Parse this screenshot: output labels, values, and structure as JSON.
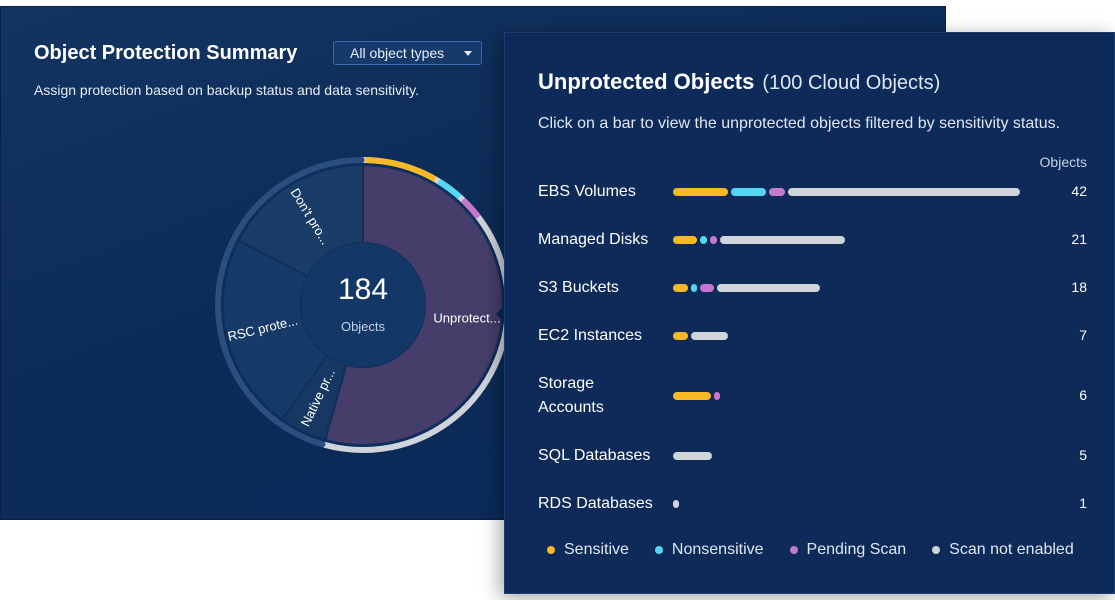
{
  "summary": {
    "title": "Object Protection Summary",
    "filter_value": "All object types",
    "subtitle": "Assign protection based on backup status and data sensitivity.",
    "center_value": "184",
    "center_label": "Objects",
    "slices": [
      {
        "label": "Unprotect...",
        "value": 100,
        "fill": "#463d6b"
      },
      {
        "label": "Native pr...",
        "value": 10,
        "fill": "#163863"
      },
      {
        "label": "RSC prote...",
        "value": 42,
        "fill": "#163b68"
      },
      {
        "label": "Don't pro...",
        "value": 32,
        "fill": "#1a3d68"
      }
    ]
  },
  "popover": {
    "title": "Unprotected Objects",
    "count_text": "(100 Cloud Objects)",
    "instructions": "Click on a bar to view the unprotected objects filtered by sensitivity status.",
    "column_header": "Objects",
    "max_value": 42,
    "rows": [
      {
        "label": "EBS Volumes",
        "value": "42",
        "segments": [
          {
            "category": "sensitive",
            "amount": 7
          },
          {
            "category": "nonsensitive",
            "amount": 4.5
          },
          {
            "category": "pending",
            "amount": 2.3
          },
          {
            "category": "scan_not_enabled",
            "amount": 28.2
          }
        ]
      },
      {
        "label": "Managed Disks",
        "value": "21",
        "segments": [
          {
            "category": "sensitive",
            "amount": 3.2
          },
          {
            "category": "nonsensitive",
            "amount": 1.2
          },
          {
            "category": "pending",
            "amount": 1.2
          },
          {
            "category": "scan_not_enabled",
            "amount": 15.4
          }
        ]
      },
      {
        "label": "S3 Buckets",
        "value": "18",
        "segments": [
          {
            "category": "sensitive",
            "amount": 2.1
          },
          {
            "category": "nonsensitive",
            "amount": 1.1
          },
          {
            "category": "pending",
            "amount": 2.1
          },
          {
            "category": "scan_not_enabled",
            "amount": 12.7
          }
        ]
      },
      {
        "label": "EC2 Instances",
        "value": "7",
        "segments": [
          {
            "category": "sensitive",
            "amount": 2.1
          },
          {
            "category": "scan_not_enabled",
            "amount": 4.9
          }
        ]
      },
      {
        "label": "Storage Accounts",
        "value": "6",
        "segments": [
          {
            "category": "sensitive",
            "amount": 4.9
          },
          {
            "category": "pending",
            "amount": 1.1
          }
        ]
      },
      {
        "label": "SQL Databases",
        "value": "5",
        "segments": [
          {
            "category": "scan_not_enabled",
            "amount": 5
          }
        ]
      },
      {
        "label": "RDS Databases",
        "value": "1",
        "segments": [
          {
            "category": "scan_not_enabled",
            "amount": 1
          }
        ]
      }
    ],
    "legend": [
      {
        "key": "sensitive",
        "label": "Sensitive",
        "color": "#f9b824"
      },
      {
        "key": "nonsensitive",
        "label": "Nonsensitive",
        "color": "#54d6f6"
      },
      {
        "key": "pending",
        "label": "Pending Scan",
        "color": "#c678cb"
      },
      {
        "key": "scan_not_enabled",
        "label": "Scan not enabled",
        "color": "#cfd3da"
      }
    ]
  }
}
